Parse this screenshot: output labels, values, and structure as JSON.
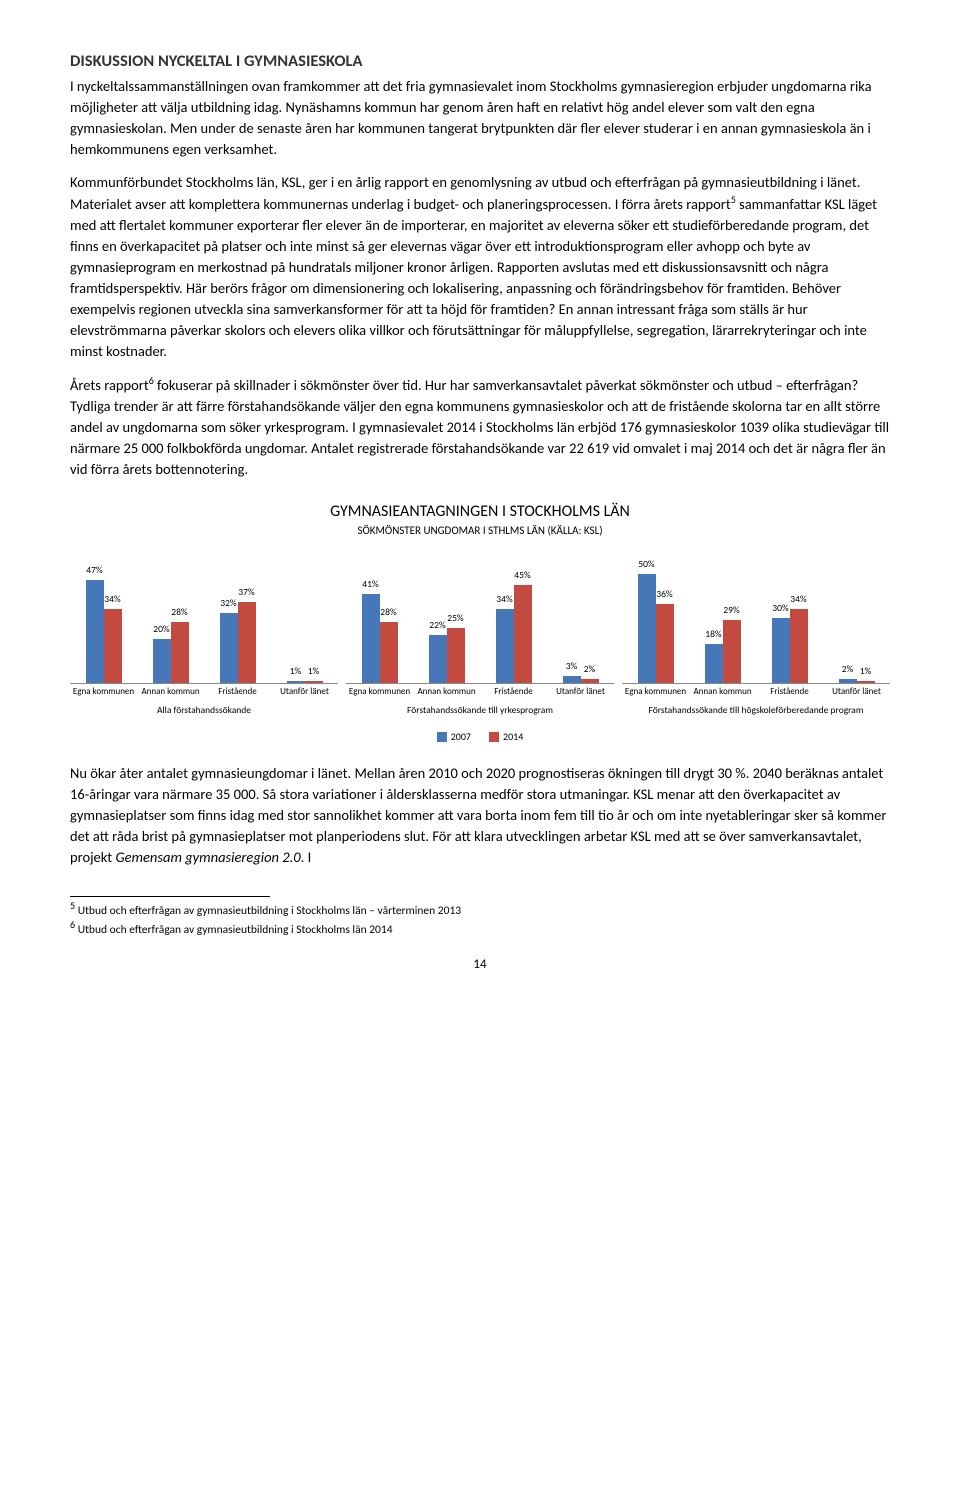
{
  "heading": "DISKUSSION NYCKELTAL I GYMNASIESKOLA",
  "p1": "I nyckeltalssammanställningen ovan framkommer att det fria gymnasievalet inom Stockholms gymnasieregion erbjuder ungdomarna rika möjligheter att välja utbildning idag. Nynäshamns kommun har genom åren haft en relativt hög andel elever som valt den egna gymnasieskolan. Men under de senaste åren har kommunen tangerat brytpunkten där fler elever studerar i en annan gymnasieskola än i hemkommunens egen verksamhet.",
  "p2a": "Kommunförbundet Stockholms län, KSL, ger i en årlig rapport en genomlysning av utbud och efterfrågan på gymnasieutbildning i länet. Materialet avser att komplettera kommunernas underlag i budget- och planeringsprocessen. I förra årets rapport",
  "p2b": " sammanfattar KSL läget med att flertalet kommuner exporterar fler elever än de importerar, en majoritet av eleverna söker ett studieförberedande program, det finns en överkapacitet på platser och inte minst så ger elevernas vägar över ett introduktionsprogram eller avhopp och byte av gymnasieprogram en merkostnad på hundratals miljoner kronor årligen. Rapporten avslutas med ett diskussionsavsnitt och några framtidsperspektiv. Här berörs frågor om dimensionering och lokalisering, anpassning och förändringsbehov för framtiden.  Behöver exempelvis regionen utveckla sina samverkansformer för att ta höjd för framtiden? En annan intressant fråga som ställs är hur elevströmmarna påverkar skolors och elevers olika villkor och förutsättningar för måluppfyllelse, segregation, lärarrekryteringar och inte minst kostnader.",
  "p3a": "Årets rapport",
  "p3b": " fokuserar på skillnader i sökmönster över tid. Hur har samverkansavtalet påverkat sökmönster och utbud – efterfrågan? Tydliga trender är att färre förstahandsökande väljer den egna kommunens gymnasieskolor och att de fristående skolorna tar en allt större andel av ungdomarna som söker yrkesprogram. I gymnasievalet 2014 i Stockholms län erbjöd 176 gymnasieskolor 1039 olika studievägar till närmare 25 000 folkbokförda ungdomar. Antalet registrerade förstahandsökande var 22 619 vid omvalet i maj 2014 och det är några fler än vid förra årets bottennotering.",
  "chart": {
    "title": "GYMNASIEANTAGNINGEN I STOCKHOLMS LÄN",
    "subtitle": "SÖKMÖNSTER UNGDOMAR I STHLMS LÄN (KÄLLA: KSL)",
    "series_labels": [
      "2007",
      "2014"
    ],
    "colors": {
      "s2007": "#4677b9",
      "s2014": "#c24a3f"
    },
    "max_pct": 55,
    "categories": [
      "Egna kommunen",
      "Annan kommun",
      "Fristående",
      "Utanför länet"
    ],
    "groups": [
      {
        "label": "Alla förstahandssökande",
        "data": [
          {
            "a": 47,
            "b": 34
          },
          {
            "a": 20,
            "b": 28
          },
          {
            "a": 32,
            "b": 37
          },
          {
            "a": 1,
            "b": 1
          }
        ]
      },
      {
        "label": "Förstahandssökande till yrkesprogram",
        "data": [
          {
            "a": 41,
            "b": 28
          },
          {
            "a": 22,
            "b": 25
          },
          {
            "a": 34,
            "b": 45
          },
          {
            "a": 3,
            "b": 2
          }
        ]
      },
      {
        "label": "Förstahandssökande till högskoleförberedande program",
        "data": [
          {
            "a": 50,
            "b": 36
          },
          {
            "a": 18,
            "b": 29
          },
          {
            "a": 30,
            "b": 34
          },
          {
            "a": 2,
            "b": 1
          }
        ]
      }
    ]
  },
  "p4a": "Nu ökar åter antalet gymnasieungdomar i länet. Mellan åren 2010 och 2020 prognostiseras ökningen till drygt 30 %. 2040 beräknas antalet 16-åringar vara närmare 35 000. Så stora variationer i åldersklasserna medför stora utmaningar. KSL menar att den överkapacitet av gymnasieplatser som finns idag med stor sannolikhet kommer att vara borta inom fem till tio år och om inte nyetableringar sker så kommer det att råda brist på gymnasieplatser mot planperiodens slut. För att klara utvecklingen arbetar KSL med att se över samverkansavtalet, projekt ",
  "p4b": "Gemensam gymnasieregion 2.0",
  "p4c": ". I",
  "fn5": "Utbud och efterfrågan av gymnasieutbildning i Stockholms län – vårterminen 2013",
  "fn6": "Utbud och efterfrågan av gymnasieutbildning i Stockholms län 2014",
  "page": "14"
}
